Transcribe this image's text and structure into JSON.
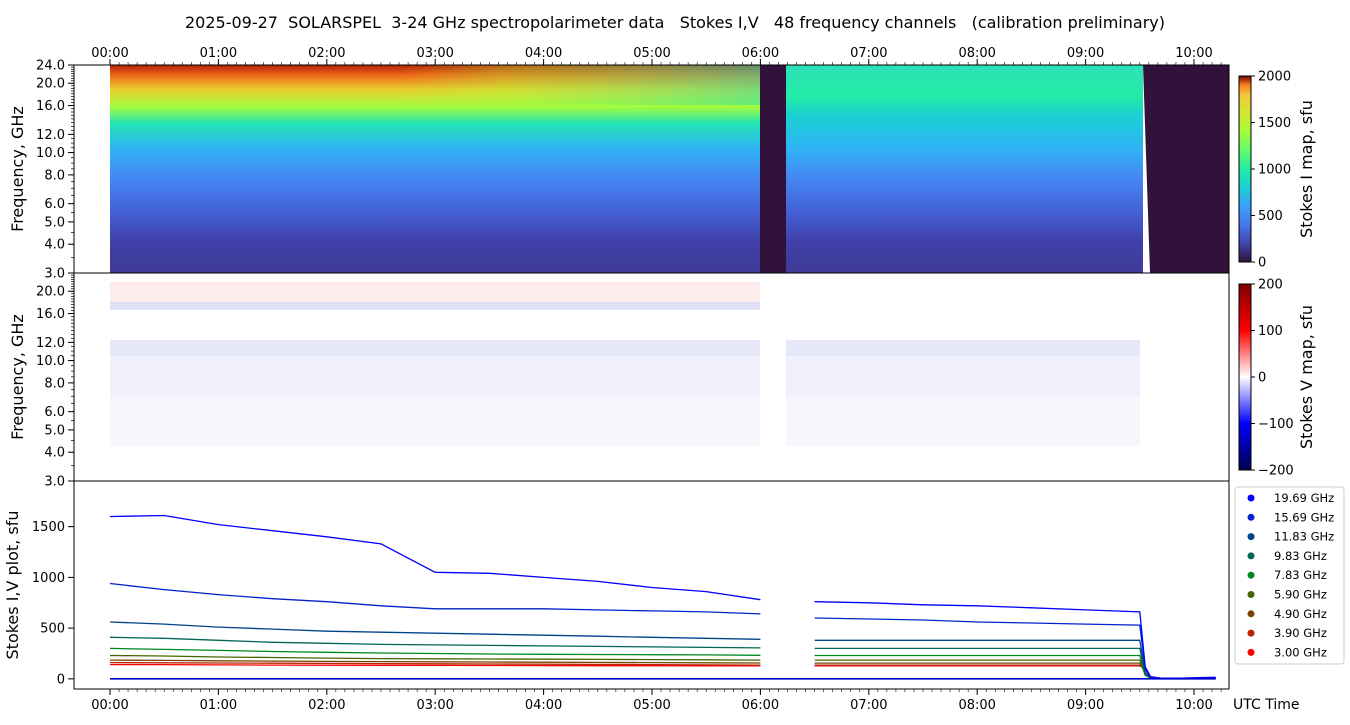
{
  "title": "2025-09-27  SOLARSPEL  3-24 GHz spectropolarimeter data   Stokes I,V   48 frequency channels   (calibration preliminary)",
  "chart_data": [
    {
      "type": "heatmap",
      "name": "stokes-i-map",
      "ylabel": "Frequency, GHz",
      "yscale": "log",
      "ylim": [
        3.0,
        24.0
      ],
      "yticks": [
        "3.0",
        "4.0",
        "5.0",
        "6.0",
        "8.0",
        "10.0",
        "12.0",
        "16.0",
        "20.0",
        "24.0"
      ],
      "xticks_top": [
        "00:00",
        "01:00",
        "02:00",
        "03:00",
        "04:00",
        "05:00",
        "06:00",
        "07:00",
        "08:00",
        "09:00",
        "10:00"
      ],
      "colorbar": {
        "label": "Stokes I map, sfu",
        "range": [
          0,
          2000
        ],
        "ticks": [
          "0",
          "500",
          "1000",
          "1500",
          "2000"
        ],
        "colormap": "turbo"
      },
      "data_gaps": [
        [
          "06:00",
          "06:13"
        ],
        [
          "09:32",
          "10:20"
        ]
      ],
      "data_start": "00:00"
    },
    {
      "type": "heatmap",
      "name": "stokes-v-map",
      "ylabel": "Frequency, GHz",
      "yscale": "log",
      "ylim": [
        3.0,
        24.0
      ],
      "yticks": [
        "3.0",
        "4.0",
        "5.0",
        "6.0",
        "8.0",
        "10.0",
        "12.0",
        "16.0",
        "20.0"
      ],
      "colorbar": {
        "label": "Stokes V map, sfu",
        "range": [
          -200,
          200
        ],
        "ticks": [
          "200",
          "100",
          "0",
          "−100",
          "−200"
        ],
        "colormap": "seismic"
      }
    },
    {
      "type": "line",
      "name": "stokes-iv-plot",
      "ylabel": "Stokes I,V plot, sfu",
      "xlabel": "UTC Time",
      "ylim": [
        -100,
        1950
      ],
      "yticks": [
        "0",
        "500",
        "1000",
        "1500"
      ],
      "xticks": [
        "00:00",
        "01:00",
        "02:00",
        "03:00",
        "04:00",
        "05:00",
        "06:00",
        "07:00",
        "08:00",
        "09:00",
        "10:00"
      ],
      "legend_position": "right",
      "x": [
        0.0,
        0.5,
        1.0,
        1.5,
        2.0,
        2.5,
        3.0,
        3.5,
        4.0,
        4.5,
        5.0,
        5.5,
        6.0,
        6.25,
        6.5,
        7.0,
        7.5,
        8.0,
        8.5,
        9.0,
        9.5,
        9.55,
        9.6,
        9.7,
        9.85,
        10.0,
        10.2
      ],
      "series": [
        {
          "name": "19.69 GHz",
          "color": "#0000ff",
          "values": [
            1600,
            1610,
            1520,
            1460,
            1400,
            1330,
            1050,
            1040,
            1000,
            960,
            900,
            860,
            780,
            null,
            760,
            750,
            730,
            720,
            700,
            680,
            660,
            120,
            20,
            5,
            5,
            10,
            15
          ]
        },
        {
          "name": "15.69 GHz",
          "color": "#0022cc",
          "values": [
            940,
            880,
            830,
            790,
            760,
            720,
            690,
            690,
            690,
            680,
            670,
            660,
            640,
            null,
            600,
            590,
            580,
            560,
            550,
            540,
            530,
            100,
            15,
            5,
            5,
            8,
            10
          ]
        },
        {
          "name": "11.83 GHz",
          "color": "#004488",
          "values": [
            560,
            540,
            510,
            490,
            470,
            460,
            450,
            440,
            430,
            420,
            410,
            400,
            390,
            null,
            380,
            380,
            380,
            380,
            380,
            380,
            380,
            60,
            10,
            5,
            5,
            5,
            5
          ]
        },
        {
          "name": "9.83 GHz",
          "color": "#006655",
          "values": [
            410,
            400,
            380,
            360,
            350,
            340,
            335,
            330,
            325,
            320,
            315,
            310,
            305,
            null,
            300,
            300,
            300,
            300,
            300,
            300,
            300,
            50,
            10,
            5,
            5,
            5,
            5
          ]
        },
        {
          "name": "7.83 GHz",
          "color": "#008822",
          "values": [
            300,
            290,
            280,
            270,
            262,
            255,
            250,
            245,
            242,
            240,
            238,
            236,
            232,
            null,
            230,
            230,
            230,
            230,
            230,
            230,
            230,
            40,
            8,
            5,
            5,
            5,
            5
          ]
        },
        {
          "name": "5.90 GHz",
          "color": "#446600",
          "values": [
            230,
            225,
            215,
            210,
            205,
            200,
            198,
            196,
            194,
            192,
            190,
            188,
            185,
            null,
            185,
            185,
            185,
            185,
            185,
            185,
            185,
            35,
            8,
            5,
            5,
            5,
            5
          ]
        },
        {
          "name": "4.90 GHz",
          "color": "#774400",
          "values": [
            185,
            182,
            178,
            175,
            172,
            170,
            168,
            166,
            164,
            162,
            160,
            158,
            156,
            null,
            155,
            155,
            155,
            155,
            155,
            155,
            155,
            60,
            8,
            5,
            5,
            5,
            5
          ]
        },
        {
          "name": "3.90 GHz",
          "color": "#bb2200",
          "values": [
            160,
            158,
            156,
            154,
            152,
            150,
            148,
            146,
            144,
            142,
            140,
            138,
            136,
            null,
            135,
            135,
            135,
            135,
            135,
            135,
            135,
            90,
            10,
            5,
            5,
            5,
            5
          ]
        },
        {
          "name": "3.00 GHz",
          "color": "#ff0000",
          "values": [
            140,
            140,
            138,
            136,
            135,
            134,
            133,
            132,
            131,
            130,
            130,
            129,
            128,
            null,
            128,
            128,
            128,
            128,
            128,
            128,
            128,
            110,
            20,
            5,
            5,
            5,
            5
          ]
        }
      ]
    }
  ]
}
